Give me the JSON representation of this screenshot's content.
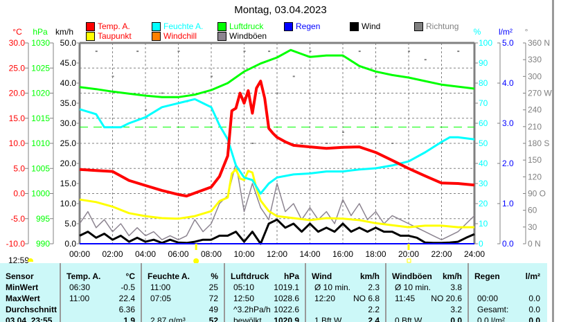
{
  "title": "Montag, 03.04.2023",
  "legend": [
    {
      "label": "Temp. A.",
      "color": "#ff0000",
      "text_color": "#ff0000"
    },
    {
      "label": "Taupunkt",
      "color": "#ffff00",
      "text_color": "#ff0000"
    },
    {
      "label": "Feuchte A.",
      "color": "#00ffff",
      "text_color": "#00ffff"
    },
    {
      "label": "Windchill",
      "color": "#ff8000",
      "text_color": "#ff0000"
    },
    {
      "label": "Luftdruck",
      "color": "#00ff00",
      "text_color": "#00ff00"
    },
    {
      "label": "Windböen",
      "color": "#8c8490",
      "text_color": "#000000"
    },
    {
      "label": "Regen",
      "color": "#0000ff",
      "text_color": "#0000ff"
    },
    {
      "label": "Wind",
      "color": "#000000",
      "text_color": "#000000"
    },
    {
      "label": "Richtung",
      "color": "#808080",
      "text_color": "#808080"
    }
  ],
  "day_length": "12:59",
  "chart_data": {
    "type": "line",
    "title": "Montag, 03.04.2023",
    "x_unit": "hours",
    "xlim": [
      0,
      24
    ],
    "x_ticks": [
      "00:00",
      "02:00",
      "04:00",
      "06:00",
      "08:00",
      "10:00",
      "12:00",
      "14:00",
      "16:00",
      "18:00",
      "20:00",
      "22:00",
      "24:00"
    ],
    "axes": {
      "temp": {
        "unit": "°C",
        "range": [
          -10,
          30
        ],
        "ticks": [
          "30.0",
          "25.0",
          "20.0",
          "15.0",
          "10.0",
          "5.0",
          "0.0",
          "-5.0",
          "-10.0"
        ],
        "color": "#ff0000"
      },
      "pressure": {
        "unit": "hPa",
        "range": [
          990,
          1030
        ],
        "ticks": [
          "1030",
          "1025",
          "1020",
          "1015",
          "1010",
          "1005",
          "1000",
          "995",
          "990"
        ],
        "color": "#00dd00"
      },
      "wind": {
        "unit": "km/h",
        "range": [
          0,
          50
        ],
        "ticks": [
          "50.0",
          "45.0",
          "40.0",
          "35.0",
          "30.0",
          "25.0",
          "20.0",
          "15.0",
          "10.0",
          "5.0",
          "0.0"
        ],
        "color": "#000000"
      },
      "humidity": {
        "unit": "%",
        "range": [
          0,
          100
        ],
        "ticks": [
          "100",
          "90",
          "80",
          "70",
          "60",
          "50",
          "40",
          "30",
          "20",
          "10",
          "0"
        ],
        "color": "#00ffff"
      },
      "rain": {
        "unit": "l/m²",
        "range": [
          0,
          5
        ],
        "ticks": [
          "5.0",
          "4.0",
          "3.0",
          "2.0",
          "1.0",
          "0.0"
        ],
        "color": "#0000ff"
      },
      "direction": {
        "unit": "°",
        "range": [
          0,
          360
        ],
        "ticks": [
          "360 N",
          "330",
          "300",
          "270 W",
          "240",
          "210",
          "180 S",
          "150",
          "120",
          "90  O",
          "60",
          "30",
          "0   N"
        ],
        "color": "#808080"
      }
    },
    "reference_line_hpa": 1013.25,
    "sunrise_hour": 7.08,
    "sunset_hour": 20.0,
    "series": [
      {
        "name": "Temp. A.",
        "axis": "temp",
        "color": "#ff0000",
        "x": [
          0,
          1,
          2,
          3,
          4,
          5,
          6,
          6.5,
          7,
          8,
          8.5,
          9,
          9.25,
          9.5,
          9.75,
          10,
          10.25,
          10.5,
          10.75,
          11,
          11.25,
          11.5,
          11.75,
          12,
          12.5,
          13,
          14,
          15,
          16,
          17,
          18,
          19,
          20,
          21,
          22,
          23,
          24
        ],
        "y": [
          4.8,
          4.6,
          4.4,
          2.6,
          1.6,
          0.6,
          -0.2,
          -0.5,
          0.1,
          1.3,
          3.4,
          7.5,
          16.5,
          17,
          20,
          18,
          20.5,
          16,
          21,
          22.4,
          19,
          13,
          12,
          11.2,
          10.3,
          9.6,
          9.3,
          9.0,
          9.2,
          9.3,
          8.2,
          6.6,
          5.0,
          3.5,
          2.1,
          2.0,
          1.7
        ]
      },
      {
        "name": "Taupunkt",
        "axis": "temp",
        "color": "#ffff00",
        "x": [
          0,
          1,
          2,
          3,
          4,
          5,
          6,
          7,
          8,
          8.5,
          9,
          9.25,
          9.5,
          9.75,
          10,
          10.25,
          10.5,
          10.75,
          11,
          11.5,
          12,
          13,
          14,
          15,
          16,
          17,
          18,
          19,
          20,
          21,
          22,
          23,
          24
        ],
        "y": [
          -1.2,
          -1.7,
          -2.6,
          -3.9,
          -4.5,
          -4.9,
          -5.0,
          -4.5,
          -3.5,
          -1.5,
          -0.8,
          4.0,
          4.8,
          3.0,
          2.7,
          4.5,
          4.2,
          1.0,
          -1.4,
          -3.5,
          -4.5,
          -4.9,
          -5.3,
          -4.9,
          -5.0,
          -5.3,
          -5.9,
          -6.3,
          -6.7,
          -6.4,
          -6.4,
          -6.7,
          -6.7
        ]
      },
      {
        "name": "Feuchte A.",
        "axis": "humidity",
        "color": "#00ffff",
        "x": [
          0,
          1,
          1.5,
          2.5,
          3,
          4,
          5,
          6,
          7,
          7.5,
          8,
          8.5,
          9,
          9.5,
          10,
          10.5,
          11,
          11.5,
          12,
          13,
          14,
          15,
          16,
          17,
          18,
          19,
          20,
          21,
          22,
          22.5,
          23,
          24
        ],
        "y": [
          67,
          64.5,
          58,
          58,
          60,
          63,
          68,
          70,
          72,
          70,
          68,
          59,
          52,
          39,
          33,
          31.7,
          25,
          30,
          33,
          34.5,
          35,
          36,
          36,
          37,
          37.6,
          39,
          41,
          45.5,
          50.7,
          53,
          53,
          52
        ]
      },
      {
        "name": "Luftdruck",
        "axis": "pressure",
        "color": "#00ff00",
        "x": [
          0,
          1,
          2,
          3,
          4,
          5,
          6,
          7,
          8,
          9,
          10,
          11,
          12,
          12.83,
          13.5,
          14,
          15,
          16,
          17,
          18,
          19,
          20,
          21,
          22,
          23,
          24
        ],
        "y": [
          1021.2,
          1020.8,
          1020.3,
          1019.9,
          1019.5,
          1019.2,
          1019.2,
          1019.7,
          1020.6,
          1022,
          1024.3,
          1025.9,
          1027.1,
          1028.6,
          1027.8,
          1027.2,
          1027.5,
          1027.5,
          1025.4,
          1024.3,
          1023.6,
          1023.1,
          1022.4,
          1021.7,
          1021.3,
          1020.9
        ]
      },
      {
        "name": "Windböen",
        "axis": "wind",
        "color": "#8c8490",
        "x": [
          0,
          0.5,
          1,
          1.5,
          2,
          2.5,
          3,
          3.5,
          4,
          4.5,
          5,
          5.5,
          6,
          6.5,
          7,
          7.5,
          8,
          8.5,
          9,
          9.5,
          10,
          10.5,
          11,
          11.5,
          12,
          12.5,
          13,
          13.5,
          14,
          14.5,
          15,
          15.5,
          16,
          16.5,
          17,
          17.5,
          18,
          18.5,
          19,
          19.5,
          20,
          20.5,
          21,
          21.5,
          22,
          22.5,
          23,
          23.5,
          24
        ],
        "y": [
          5,
          8,
          4,
          6,
          3,
          5,
          2,
          4,
          2,
          3,
          1,
          2,
          1,
          2,
          6,
          3,
          5,
          10,
          12,
          20,
          8,
          15,
          9,
          6,
          15,
          8,
          10,
          6,
          9,
          6,
          8,
          5,
          11,
          7,
          10,
          6,
          8,
          5,
          7,
          6,
          5,
          4,
          3,
          2,
          1,
          2,
          3,
          5,
          7
        ]
      },
      {
        "name": "Wind",
        "axis": "wind",
        "color": "#000000",
        "x": [
          0,
          0.5,
          1,
          1.5,
          2,
          2.5,
          3,
          3.5,
          4,
          4.5,
          5,
          5.5,
          6,
          6.5,
          7,
          7.5,
          8,
          8.5,
          9,
          9.5,
          10,
          10.5,
          11,
          11.5,
          12,
          12.5,
          13,
          13.5,
          14,
          14.5,
          15,
          15.5,
          16,
          16.5,
          17,
          17.5,
          18,
          18.5,
          19,
          19.5,
          20,
          20.5,
          21,
          21.5,
          22,
          22.5,
          23,
          23.5,
          24
        ],
        "y": [
          2,
          3,
          1.5,
          2.5,
          1,
          2,
          0.5,
          1.5,
          0.5,
          1,
          0.2,
          1,
          0.3,
          0.2,
          0.5,
          1,
          1,
          2,
          2,
          3,
          0.5,
          3,
          0,
          5,
          6,
          4,
          5,
          3,
          5,
          3,
          4,
          3,
          5,
          3,
          4,
          3,
          4,
          3,
          3,
          2,
          2,
          1.5,
          0.3,
          0.2,
          0.2,
          0.3,
          0.5,
          1.5,
          2.4
        ]
      },
      {
        "name": "Regen",
        "axis": "rain",
        "color": "#0000ff",
        "x": [
          0,
          24
        ],
        "y": [
          0,
          0
        ]
      }
    ],
    "direction_points": {
      "axis": "direction",
      "color": "#808080",
      "x": [
        1,
        2,
        3.5,
        4,
        5,
        6,
        6.5,
        8,
        9,
        10,
        10.5,
        11.5,
        12,
        13,
        13.5,
        14,
        15,
        16,
        17,
        18,
        19,
        20,
        21,
        22,
        23
      ],
      "y": [
        345,
        300,
        345,
        240,
        270,
        345,
        255,
        300,
        180,
        345,
        180,
        345,
        270,
        300,
        180,
        345,
        180,
        200,
        345,
        300,
        180,
        345,
        330,
        180,
        345
      ]
    }
  },
  "table": {
    "headers": [
      {
        "name": "Sensor",
        "unit": ""
      },
      {
        "name": "Temp. A.",
        "unit": "°C"
      },
      {
        "name": "Feuchte A.",
        "unit": "%"
      },
      {
        "name": "Luftdruck",
        "unit": "hPa"
      },
      {
        "name": "Wind",
        "unit": "km/h"
      },
      {
        "name": "Windböen",
        "unit": "km/h"
      },
      {
        "name": "Regen",
        "unit": "l/m²"
      }
    ],
    "rows": [
      {
        "label": "MinWert",
        "cells": [
          [
            "06:30",
            "-0.5"
          ],
          [
            "11:00",
            "25"
          ],
          [
            "05:10",
            "1019.1"
          ],
          [
            "Ø 10 min.",
            "2.3"
          ],
          [
            "Ø 10 min.",
            "3.8"
          ],
          [
            "",
            ""
          ]
        ]
      },
      {
        "label": "MaxWert",
        "cells": [
          [
            "11:00",
            "22.4"
          ],
          [
            "07:05",
            "72"
          ],
          [
            "12:50",
            "1028.6"
          ],
          [
            "12:20",
            "NO 6.8"
          ],
          [
            "11:45",
            "NO 20.6"
          ],
          [
            "00:00",
            "0.0"
          ]
        ]
      },
      {
        "label": "Durchschnitt",
        "cells": [
          [
            "",
            "6.36"
          ],
          [
            "",
            "49"
          ],
          [
            "^3.2hPa/h",
            "1022.6"
          ],
          [
            "",
            "2.2"
          ],
          [
            "",
            "3.2"
          ],
          [
            "Gesamt:",
            "0.0"
          ]
        ]
      },
      {
        "label": "03.04. 23:55",
        "cells": [
          [
            "",
            "1.9"
          ],
          [
            "2.87 g/m³",
            "52"
          ],
          [
            "bewölkt",
            "1020.9"
          ],
          [
            "1 Bft W",
            "2.4"
          ],
          [
            "0 Bft W",
            "0.0"
          ],
          [
            "0.0 l/m²",
            "0.0"
          ]
        ]
      }
    ]
  }
}
